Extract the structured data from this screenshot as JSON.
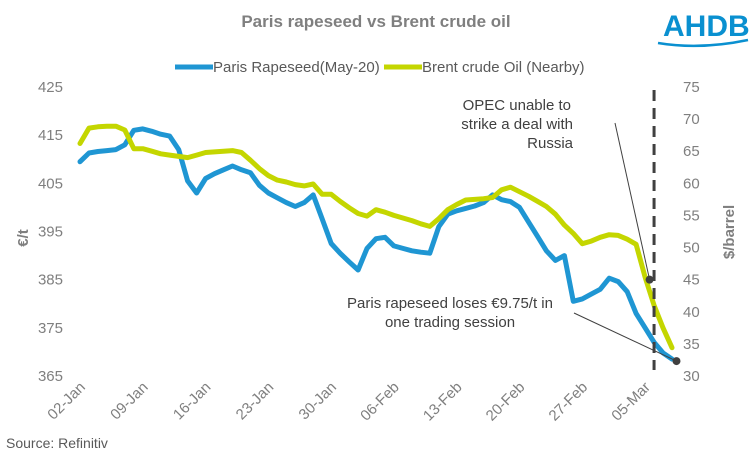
{
  "chart_data": {
    "type": "line",
    "title": "Paris rapeseed vs Brent crude oil",
    "ylabel": "€/t",
    "y2label": "$/barrel",
    "ylim": [
      365,
      425
    ],
    "y2lim": [
      30,
      75
    ],
    "yticks": [
      "425",
      "415",
      "405",
      "395",
      "385",
      "375",
      "365"
    ],
    "y2ticks": [
      "75",
      "70",
      "65",
      "60",
      "55",
      "50",
      "45",
      "40",
      "35",
      "30"
    ],
    "xticks": [
      "02-Jan",
      "09-Jan",
      "16-Jan",
      "23-Jan",
      "30-Jan",
      "06-Feb",
      "13-Feb",
      "20-Feb",
      "27-Feb",
      "05-Mar"
    ],
    "legend_position": "top",
    "grid": false,
    "series": [
      {
        "name": "Paris Rapeseed(May-20)",
        "axis": "left",
        "color": "#1f96d3",
        "points": [
          [
            0,
            409.5
          ],
          [
            1,
            411.3
          ],
          [
            2,
            411.6
          ],
          [
            3,
            411.8
          ],
          [
            4,
            412
          ],
          [
            5,
            413
          ],
          [
            6,
            416
          ],
          [
            7,
            416.3
          ],
          [
            8,
            415.8
          ],
          [
            9,
            415.2
          ],
          [
            10,
            414.8
          ],
          [
            11,
            412
          ],
          [
            12,
            405.5
          ],
          [
            13,
            403
          ],
          [
            14,
            406
          ],
          [
            15,
            407
          ],
          [
            16,
            407.8
          ],
          [
            17,
            408.6
          ],
          [
            18,
            407.8
          ],
          [
            19,
            407.2
          ],
          [
            20,
            404.6
          ],
          [
            21,
            403
          ],
          [
            22,
            402
          ],
          [
            23,
            401
          ],
          [
            24,
            400.2
          ],
          [
            25,
            401
          ],
          [
            26,
            402.6
          ],
          [
            27,
            397.6
          ],
          [
            28,
            392.5
          ],
          [
            29,
            390.5
          ],
          [
            30,
            388.7
          ],
          [
            31,
            387
          ],
          [
            32,
            391.5
          ],
          [
            33,
            393.5
          ],
          [
            34,
            393.8
          ],
          [
            35,
            392
          ],
          [
            36,
            391.5
          ],
          [
            37,
            391
          ],
          [
            38,
            390.7
          ],
          [
            39,
            390.5
          ],
          [
            40,
            396
          ],
          [
            41,
            398.6
          ],
          [
            42,
            399.3
          ],
          [
            43,
            399.8
          ],
          [
            44,
            400.3
          ],
          [
            45,
            401
          ],
          [
            46,
            402.6
          ],
          [
            47,
            401.6
          ],
          [
            48,
            401.2
          ],
          [
            49,
            400
          ],
          [
            50,
            397
          ],
          [
            51,
            394
          ],
          [
            52,
            391
          ],
          [
            53,
            389
          ],
          [
            54,
            390
          ],
          [
            55,
            380.5
          ],
          [
            56,
            381
          ],
          [
            57,
            382
          ],
          [
            58,
            383
          ],
          [
            59,
            385.3
          ],
          [
            60,
            384.6
          ],
          [
            61,
            382.5
          ],
          [
            62,
            378
          ],
          [
            63,
            375
          ],
          [
            64,
            372
          ],
          [
            65,
            369.8
          ],
          [
            66,
            368.5
          ]
        ]
      },
      {
        "name": "Brent crude Oil (Nearby)",
        "axis": "right",
        "color": "#c4d600",
        "points": [
          [
            0,
            66.2
          ],
          [
            1,
            68.6
          ],
          [
            2,
            68.8
          ],
          [
            3,
            68.9
          ],
          [
            4,
            68.9
          ],
          [
            5,
            68.3
          ],
          [
            6,
            65.4
          ],
          [
            7,
            65.4
          ],
          [
            8,
            65
          ],
          [
            9,
            64.6
          ],
          [
            10,
            64.4
          ],
          [
            11,
            64.2
          ],
          [
            12,
            64
          ],
          [
            13,
            64.4
          ],
          [
            14,
            64.8
          ],
          [
            15,
            64.9
          ],
          [
            16,
            65
          ],
          [
            17,
            65.1
          ],
          [
            18,
            64.8
          ],
          [
            19,
            63.6
          ],
          [
            20,
            62.3
          ],
          [
            21,
            61.2
          ],
          [
            22,
            60.5
          ],
          [
            23,
            60.2
          ],
          [
            24,
            59.8
          ],
          [
            25,
            59.6
          ],
          [
            26,
            59.9
          ],
          [
            27,
            58.3
          ],
          [
            28,
            58.3
          ],
          [
            29,
            57.2
          ],
          [
            30,
            56.2
          ],
          [
            31,
            55.3
          ],
          [
            32,
            54.9
          ],
          [
            33,
            55.9
          ],
          [
            34,
            55.5
          ],
          [
            35,
            55
          ],
          [
            36,
            54.6
          ],
          [
            37,
            54.2
          ],
          [
            38,
            53.7
          ],
          [
            39,
            53.3
          ],
          [
            40,
            54.5
          ],
          [
            41,
            55.9
          ],
          [
            42,
            56.7
          ],
          [
            43,
            57.4
          ],
          [
            44,
            57.5
          ],
          [
            45,
            57.6
          ],
          [
            46,
            57.8
          ],
          [
            47,
            59
          ],
          [
            48,
            59.4
          ],
          [
            49,
            58.7
          ],
          [
            50,
            58
          ],
          [
            51,
            57.2
          ],
          [
            52,
            56.4
          ],
          [
            53,
            55.2
          ],
          [
            54,
            53.5
          ],
          [
            55,
            52.2
          ],
          [
            56,
            50.6
          ],
          [
            57,
            51
          ],
          [
            58,
            51.6
          ],
          [
            59,
            52
          ],
          [
            60,
            51.9
          ],
          [
            61,
            51.3
          ],
          [
            62,
            50.5
          ],
          [
            63,
            45.4
          ],
          [
            64,
            41
          ],
          [
            65,
            37.5
          ],
          [
            66,
            34.4
          ]
        ]
      }
    ],
    "event_marker": {
      "x": 64,
      "label": "OPEC unable to strike a deal with Russia"
    },
    "annotations": [
      {
        "lines": [
          "OPEC unable to",
          "strike a deal with",
          "Russia"
        ],
        "point": {
          "series": 1,
          "x": 63.5,
          "y": 45
        }
      },
      {
        "lines": [
          "Paris rapeseed loses €9.75/t in",
          "one trading session"
        ],
        "point": {
          "series": 0,
          "x": 66.5,
          "y": 368.1
        }
      }
    ]
  },
  "logo": {
    "text": "AHDB",
    "color": "#0a90d0"
  },
  "source": "Source: Refinitiv"
}
